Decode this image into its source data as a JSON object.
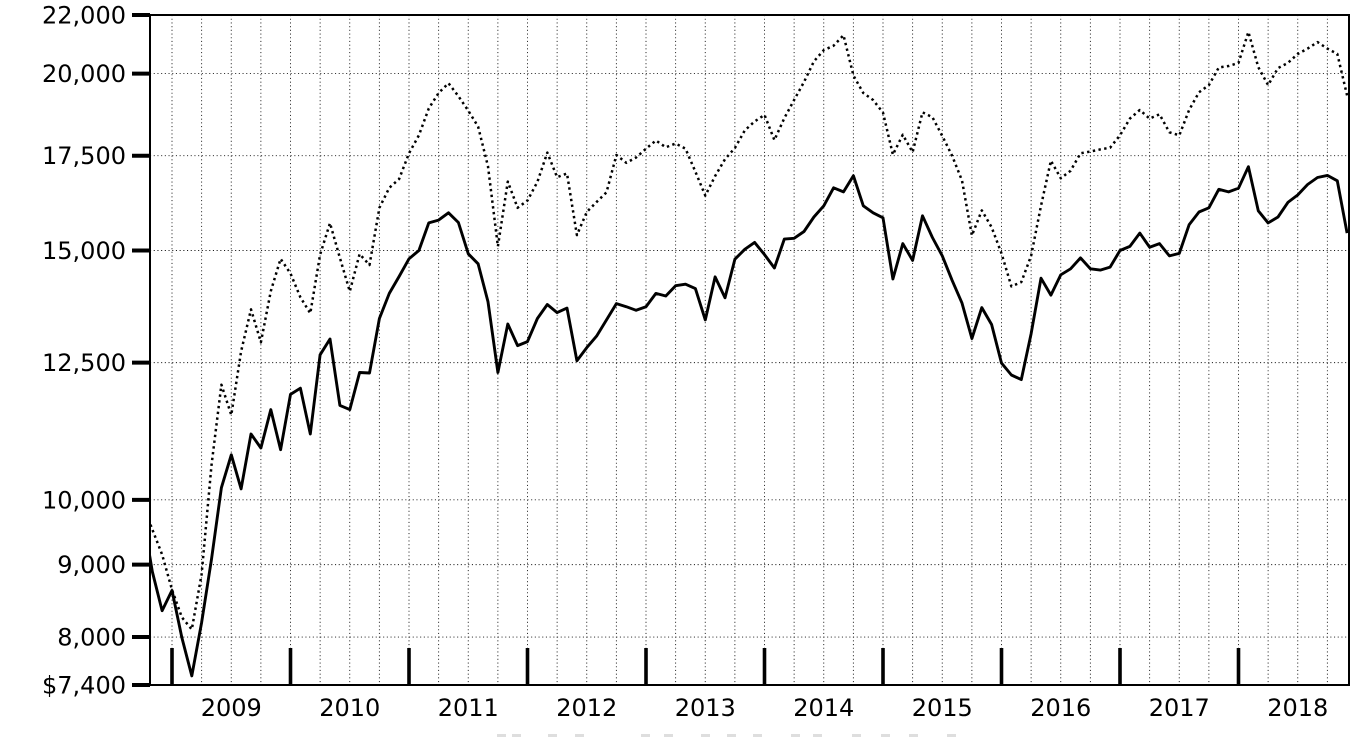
{
  "chart_data": {
    "type": "line",
    "title": "",
    "background": "#ffffff",
    "line_color": "#000000",
    "legend": "none",
    "grid": "dotted, quarterly vertical and per-tick horizontal",
    "x_axis": {
      "frequency": "monthly",
      "x_start": "2008-09",
      "x_end": "2018-11",
      "year_labels": [
        "2009",
        "2010",
        "2011",
        "2012",
        "2013",
        "2014",
        "2015",
        "2016",
        "2017",
        "2018"
      ]
    },
    "y_axis": {
      "scale": "log",
      "min": 7400,
      "max": 22000,
      "ticks": [
        {
          "label": "22,000",
          "value": 22000
        },
        {
          "label": "20,000",
          "value": 20000
        },
        {
          "label": "17,500",
          "value": 17500
        },
        {
          "label": "15,000",
          "value": 15000
        },
        {
          "label": "12,500",
          "value": 12500
        },
        {
          "label": "10,000",
          "value": 10000
        },
        {
          "label": "9,000",
          "value": 9000
        },
        {
          "label": "8,000",
          "value": 8000
        },
        {
          "label": "$7,400",
          "value": 7400
        }
      ]
    },
    "series": [
      {
        "name": "solid-line",
        "style": "solid",
        "values": [
          9800,
          8900,
          8350,
          8630,
          7990,
          7510,
          8190,
          9080,
          10200,
          10760,
          10180,
          11130,
          10880,
          11580,
          10850,
          11870,
          11990,
          11130,
          12660,
          12990,
          11660,
          11580,
          12300,
          12290,
          13430,
          13990,
          14380,
          14800,
          15000,
          15690,
          15760,
          15950,
          15700,
          14920,
          14680,
          13800,
          12300,
          13310,
          12850,
          12935,
          13430,
          13740,
          13560,
          13660,
          12540,
          12810,
          13050,
          13400,
          13760,
          13690,
          13610,
          13690,
          13990,
          13930,
          14165,
          14200,
          14100,
          13400,
          14370,
          13890,
          14790,
          15030,
          15200,
          14900,
          14580,
          15280,
          15300,
          15470,
          15840,
          16130,
          16610,
          16500,
          16940,
          16130,
          15950,
          15820,
          14320,
          15170,
          14760,
          15870,
          15320,
          14870,
          14290,
          13770,
          13000,
          13670,
          13300,
          12490,
          12250,
          12160,
          13100,
          14340,
          13950,
          14420,
          14560,
          14820,
          14560,
          14530,
          14600,
          15000,
          15100,
          15430,
          15080,
          15170,
          14870,
          14930,
          15640,
          15970,
          16080,
          16570,
          16500,
          16600,
          17190,
          16000,
          15690,
          15840,
          16220,
          16420,
          16700,
          16890,
          16950,
          16800,
          15430
        ]
      },
      {
        "name": "dotted-line",
        "style": "dotted",
        "values": [
          9950,
          9530,
          9150,
          8640,
          8260,
          8100,
          8860,
          10580,
          12060,
          11480,
          12730,
          13630,
          12920,
          14040,
          14800,
          14450,
          13900,
          13545,
          14900,
          15685,
          14820,
          14035,
          14915,
          14650,
          16080,
          16610,
          16850,
          17570,
          18090,
          18900,
          19380,
          19690,
          19280,
          18830,
          18350,
          17200,
          15100,
          16780,
          16080,
          16270,
          16770,
          17590,
          16900,
          17000,
          15380,
          15970,
          16230,
          16490,
          17520,
          17300,
          17450,
          17700,
          17940,
          17740,
          17850,
          17700,
          17050,
          16400,
          16930,
          17400,
          17720,
          18235,
          18500,
          18700,
          17950,
          18600,
          19160,
          19730,
          20400,
          20780,
          20930,
          21290,
          19940,
          19380,
          19160,
          18770,
          17530,
          18110,
          17600,
          18780,
          18630,
          18070,
          17500,
          16810,
          15370,
          16010,
          15580,
          14930,
          14150,
          14250,
          14870,
          16130,
          17360,
          16870,
          17080,
          17570,
          17620,
          17680,
          17730,
          18090,
          18590,
          18850,
          18590,
          18720,
          18180,
          18090,
          18850,
          19400,
          19630,
          20200,
          20250,
          20350,
          21400,
          20210,
          19630,
          20180,
          20350,
          20650,
          20830,
          21050,
          20830,
          20650,
          19300
        ]
      }
    ]
  }
}
